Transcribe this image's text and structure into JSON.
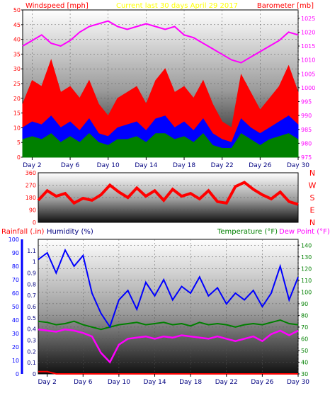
{
  "header": {
    "left": "Windspeed [mph]",
    "center": "Current last 30 days April 29 2017",
    "right": "Barometer [mb]"
  },
  "colors": {
    "wind_axis": "#ff0000",
    "baro": "#ff00ff",
    "title": "#ffff00",
    "gust": "#ff0000",
    "speed": "#0000ff",
    "avg": "#008000",
    "direction": "#ff0000",
    "rain": "#ff0000",
    "humidity": "#0000ff",
    "temperature": "#008000",
    "dewpoint": "#ff00ff",
    "axis_text": "#000080"
  },
  "x_ticks": [
    "Day 2",
    "Day 6",
    "Day 10",
    "Day 14",
    "Day 18",
    "Day 22",
    "Day 26",
    "Day 30"
  ],
  "chart_data": [
    {
      "type": "area",
      "panel": "wind-barometer",
      "y_left": {
        "label": "Windspeed [mph]",
        "range": [
          0,
          50
        ],
        "ticks": [
          0,
          5,
          10,
          15,
          20,
          25,
          30,
          35,
          40,
          45,
          50
        ]
      },
      "y_right": {
        "label": "Barometer [mb]",
        "range": [
          975,
          1028
        ],
        "ticks": [
          975,
          980,
          985,
          990,
          995,
          1000,
          1005,
          1010,
          1015,
          1020,
          1025
        ]
      },
      "series": [
        {
          "name": "Gust",
          "unit": "mph",
          "values": [
            18,
            26,
            24,
            33,
            22,
            24,
            20,
            26,
            18,
            14,
            20,
            22,
            24,
            18,
            26,
            30,
            22,
            24,
            20,
            26,
            18,
            12,
            10,
            28,
            22,
            16,
            20,
            24,
            31,
            22
          ]
        },
        {
          "name": "Windspeed",
          "unit": "mph",
          "values": [
            10,
            12,
            11,
            14,
            10,
            12,
            9,
            13,
            8,
            7,
            10,
            11,
            12,
            9,
            13,
            14,
            10,
            12,
            9,
            13,
            8,
            6,
            5,
            13,
            10,
            8,
            10,
            12,
            14,
            11
          ]
        },
        {
          "name": "Average",
          "unit": "mph",
          "values": [
            6,
            7,
            6,
            8,
            5,
            7,
            5,
            8,
            5,
            4,
            6,
            6,
            7,
            5,
            8,
            8,
            6,
            7,
            5,
            8,
            4,
            3,
            3,
            8,
            6,
            4,
            6,
            7,
            8,
            6
          ]
        },
        {
          "name": "Barometer",
          "unit": "mb",
          "values": [
            1015,
            1017,
            1019,
            1016,
            1015,
            1017,
            1020,
            1022,
            1023,
            1024,
            1022,
            1021,
            1022,
            1023,
            1022,
            1021,
            1022,
            1019,
            1018,
            1016,
            1014,
            1012,
            1010,
            1009,
            1011,
            1013,
            1015,
            1017,
            1020,
            1019
          ]
        }
      ]
    },
    {
      "type": "line",
      "panel": "wind-direction",
      "y": {
        "range": [
          0,
          360
        ],
        "ticks": [
          0,
          90,
          180,
          270,
          360
        ]
      },
      "compass": [
        "N",
        "W",
        "S",
        "E",
        "N"
      ],
      "series": [
        {
          "name": "Direction",
          "unit": "deg",
          "values": [
            160,
            230,
            190,
            210,
            140,
            175,
            160,
            200,
            270,
            220,
            180,
            250,
            190,
            230,
            160,
            240,
            190,
            210,
            170,
            230,
            150,
            140,
            260,
            290,
            240,
            200,
            170,
            220,
            150,
            130
          ]
        }
      ]
    },
    {
      "type": "line",
      "panel": "rain-humidity-temperature",
      "y_left": {
        "rain_label": "Rainfall (.in)",
        "humidity_label": "Humidity (%)",
        "rain_range": [
          0,
          1.2
        ],
        "rain_ticks": [
          0,
          0.1,
          0.2,
          0.3,
          0.4,
          0.5,
          0.6,
          0.7,
          0.8,
          0.9,
          1,
          1.1
        ],
        "humidity_range": [
          0,
          100
        ],
        "humidity_ticks": [
          0,
          10,
          20,
          30,
          40,
          50,
          60,
          70,
          80,
          90,
          100
        ]
      },
      "y_right": {
        "temp_label": "Temperature (°F)",
        "dew_label": "Dew Point (°F)",
        "range": [
          30,
          145
        ],
        "ticks": [
          30,
          40,
          50,
          60,
          70,
          80,
          90,
          100,
          110,
          120,
          130,
          140
        ]
      },
      "series": [
        {
          "name": "Rainfall",
          "unit": "in",
          "values": [
            0.02,
            0.02,
            0,
            0,
            0,
            0,
            0,
            0,
            0,
            0,
            0,
            0,
            0,
            0,
            0,
            0,
            0,
            0,
            0,
            0,
            0,
            0,
            0,
            0,
            0,
            0,
            0,
            0,
            0,
            0
          ]
        },
        {
          "name": "Humidity",
          "unit": "%",
          "values": [
            85,
            90,
            75,
            92,
            80,
            88,
            60,
            45,
            35,
            55,
            62,
            48,
            68,
            58,
            70,
            55,
            65,
            60,
            72,
            58,
            64,
            52,
            60,
            55,
            62,
            50,
            60,
            80,
            55,
            72
          ]
        },
        {
          "name": "Temperature",
          "unit": "°F",
          "values": [
            75,
            74,
            72,
            73,
            75,
            72,
            70,
            68,
            70,
            72,
            73,
            74,
            72,
            73,
            74,
            72,
            73,
            71,
            74,
            72,
            73,
            72,
            70,
            72,
            73,
            72,
            74,
            76,
            73,
            72
          ]
        },
        {
          "name": "Dew Point",
          "unit": "°F",
          "values": [
            68,
            67,
            66,
            68,
            67,
            65,
            62,
            48,
            40,
            55,
            60,
            61,
            62,
            60,
            62,
            61,
            63,
            62,
            61,
            60,
            62,
            60,
            58,
            60,
            62,
            58,
            64,
            67,
            63,
            67
          ]
        }
      ]
    }
  ]
}
